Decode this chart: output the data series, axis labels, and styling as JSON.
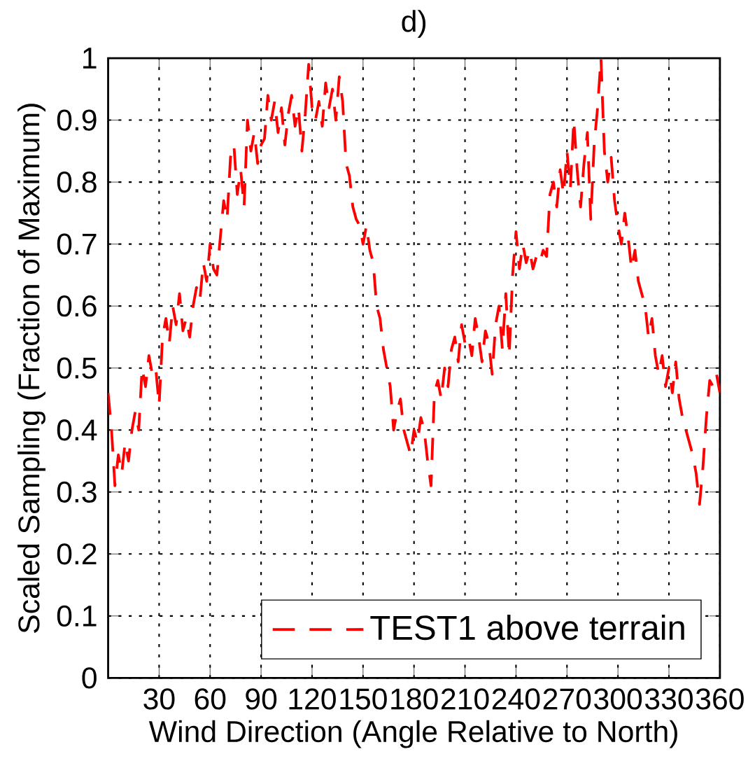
{
  "chart_data": {
    "type": "line",
    "title": "d)",
    "xlabel": "Wind Direction (Angle Relative to North)",
    "ylabel": "Scaled Sampling (Fraction of Maximum)",
    "x": [
      0,
      2,
      4,
      6,
      8,
      10,
      12,
      14,
      16,
      18,
      20,
      22,
      24,
      26,
      28,
      30,
      32,
      34,
      36,
      38,
      40,
      42,
      44,
      46,
      48,
      50,
      52,
      54,
      56,
      58,
      60,
      62,
      64,
      66,
      68,
      70,
      72,
      74,
      76,
      78,
      80,
      82,
      84,
      86,
      88,
      90,
      92,
      94,
      96,
      98,
      100,
      102,
      104,
      106,
      108,
      110,
      112,
      114,
      116,
      118,
      120,
      122,
      124,
      126,
      128,
      130,
      132,
      134,
      136,
      138,
      140,
      142,
      144,
      146,
      148,
      150,
      152,
      154,
      156,
      158,
      160,
      162,
      164,
      166,
      168,
      170,
      172,
      174,
      176,
      178,
      180,
      182,
      184,
      186,
      188,
      190,
      192,
      194,
      196,
      198,
      200,
      202,
      204,
      206,
      208,
      210,
      212,
      214,
      216,
      218,
      220,
      222,
      224,
      226,
      228,
      230,
      232,
      234,
      236,
      238,
      240,
      242,
      244,
      246,
      248,
      250,
      252,
      254,
      256,
      258,
      260,
      262,
      264,
      266,
      268,
      270,
      272,
      274,
      276,
      278,
      280,
      282,
      284,
      286,
      288,
      290,
      292,
      294,
      296,
      298,
      300,
      302,
      304,
      306,
      308,
      310,
      312,
      314,
      316,
      318,
      320,
      322,
      324,
      326,
      328,
      330,
      332,
      334,
      336,
      338,
      340,
      342,
      344,
      346,
      348,
      350,
      352,
      354,
      356,
      358,
      360
    ],
    "series": [
      {
        "name": "TEST1 above terrain",
        "color": "#ff0000",
        "values": [
          0.46,
          0.4,
          0.31,
          0.36,
          0.33,
          0.38,
          0.35,
          0.4,
          0.43,
          0.4,
          0.5,
          0.47,
          0.52,
          0.49,
          0.5,
          0.44,
          0.55,
          0.58,
          0.54,
          0.6,
          0.57,
          0.62,
          0.56,
          0.58,
          0.55,
          0.6,
          0.63,
          0.61,
          0.67,
          0.64,
          0.7,
          0.66,
          0.65,
          0.71,
          0.77,
          0.74,
          0.84,
          0.86,
          0.78,
          0.82,
          0.76,
          0.9,
          0.85,
          0.88,
          0.83,
          0.86,
          0.87,
          0.94,
          0.9,
          0.93,
          0.88,
          0.92,
          0.86,
          0.91,
          0.94,
          0.89,
          0.92,
          0.85,
          0.91,
          0.99,
          0.92,
          0.9,
          0.93,
          0.89,
          0.96,
          0.92,
          0.95,
          0.9,
          0.97,
          0.93,
          0.83,
          0.81,
          0.76,
          0.74,
          0.73,
          0.7,
          0.73,
          0.69,
          0.67,
          0.6,
          0.58,
          0.53,
          0.5,
          0.47,
          0.4,
          0.43,
          0.45,
          0.4,
          0.38,
          0.36,
          0.4,
          0.38,
          0.42,
          0.4,
          0.35,
          0.31,
          0.46,
          0.48,
          0.45,
          0.5,
          0.47,
          0.53,
          0.55,
          0.51,
          0.57,
          0.54,
          0.55,
          0.52,
          0.58,
          0.55,
          0.51,
          0.56,
          0.54,
          0.49,
          0.57,
          0.6,
          0.53,
          0.62,
          0.52,
          0.65,
          0.72,
          0.66,
          0.7,
          0.67,
          0.69,
          0.66,
          0.68,
          0.67,
          0.69,
          0.68,
          0.78,
          0.8,
          0.76,
          0.82,
          0.78,
          0.85,
          0.79,
          0.9,
          0.82,
          0.76,
          0.83,
          0.88,
          0.74,
          0.86,
          0.92,
          1.0,
          0.85,
          0.8,
          0.84,
          0.77,
          0.73,
          0.7,
          0.75,
          0.71,
          0.66,
          0.69,
          0.64,
          0.62,
          0.6,
          0.55,
          0.58,
          0.52,
          0.49,
          0.52,
          0.47,
          0.5,
          0.46,
          0.51,
          0.45,
          0.42,
          0.4,
          0.38,
          0.36,
          0.33,
          0.28,
          0.34,
          0.42,
          0.48,
          0.47,
          0.49,
          0.46
        ]
      }
    ],
    "xlim": [
      0,
      360
    ],
    "ylim": [
      0,
      1
    ],
    "xticks": [
      30,
      60,
      90,
      120,
      150,
      180,
      210,
      240,
      270,
      300,
      330,
      360
    ],
    "yticks": [
      0,
      0.1,
      0.2,
      0.3,
      0.4,
      0.5,
      0.6,
      0.7,
      0.8,
      0.9,
      1
    ],
    "grid": true,
    "legend": "bottom right",
    "line_style": "dashed"
  }
}
